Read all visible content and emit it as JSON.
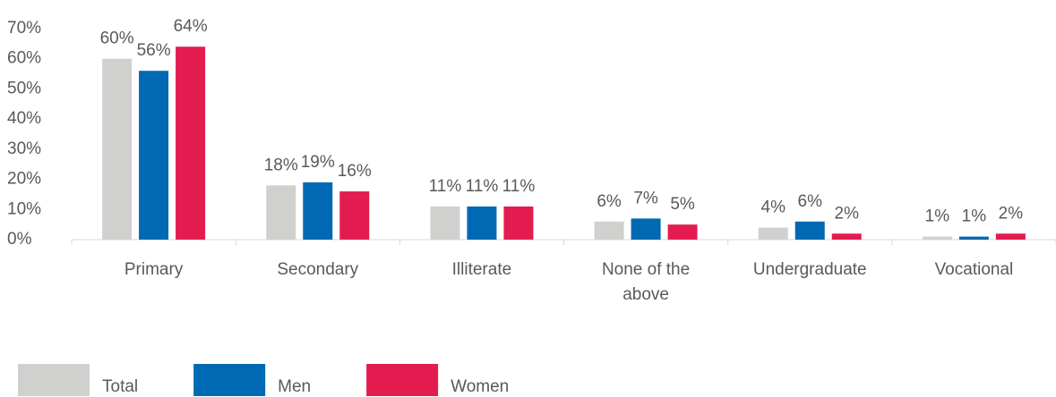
{
  "chart_data": {
    "type": "bar",
    "categories": [
      "Primary",
      "Secondary",
      "Illiterate",
      "None of the above",
      "Undergraduate",
      "Vocational"
    ],
    "series": [
      {
        "name": "Total",
        "color": "#d0d0ce",
        "values": [
          60,
          18,
          11,
          6,
          4,
          1
        ],
        "value_labels": [
          "60%",
          "18%",
          "11%",
          "6%",
          "4%",
          "1%"
        ]
      },
      {
        "name": "Men",
        "color": "#0069b4",
        "values": [
          56,
          19,
          11,
          7,
          6,
          1
        ],
        "value_labels": [
          "56%",
          "19%",
          "11%",
          "7%",
          "6%",
          "1%"
        ]
      },
      {
        "name": "Women",
        "color": "#e31c4f",
        "values": [
          64,
          16,
          11,
          5,
          2,
          2
        ],
        "value_labels": [
          "64%",
          "16%",
          "11%",
          "5%",
          "2%",
          "2%"
        ]
      }
    ],
    "ylim": [
      0,
      70
    ],
    "yticks": [
      {
        "value": 0,
        "label": "0%"
      },
      {
        "value": 10,
        "label": "10%"
      },
      {
        "value": 20,
        "label": "20%"
      },
      {
        "value": 30,
        "label": "30%"
      },
      {
        "value": 40,
        "label": "40%"
      },
      {
        "value": 50,
        "label": "50%"
      },
      {
        "value": 60,
        "label": "60%"
      },
      {
        "value": 70,
        "label": "70%"
      }
    ],
    "grid": false,
    "legend": "bottom-left"
  }
}
